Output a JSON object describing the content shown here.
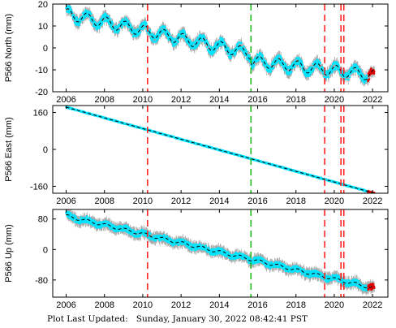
{
  "footer": {
    "label": "Plot Last Updated:",
    "timestamp": "Sunday, January 30, 2022 08:42:41 PST"
  },
  "colors": {
    "data_fill": "#00e5ff",
    "error_bars": "#a9a9a9",
    "model_line": "#000000",
    "recent_data": "#e00000",
    "red_event_line": "#ff2222",
    "green_event_line": "#22bb22"
  },
  "chart_data": [
    {
      "type": "scatter",
      "station": "P566",
      "component": "North",
      "ylabel": "P566 North (mm)",
      "xlim": [
        2005.3,
        2022.8
      ],
      "ylim": [
        -20,
        20
      ],
      "x_ticks": [
        2006,
        2008,
        2010,
        2012,
        2014,
        2016,
        2018,
        2020,
        2022
      ],
      "y_ticks": [
        -20,
        -10,
        0,
        10,
        20
      ],
      "trend": {
        "x": [
          2006.0,
          2015.6,
          2015.7,
          2022.1
        ],
        "y": [
          15.5,
          -2.5,
          -6.0,
          -12.5
        ],
        "seasonal_amplitude_mm": 2.5
      },
      "vertical_lines": [
        {
          "x": 2010.25,
          "color": "red"
        },
        {
          "x": 2015.65,
          "color": "green"
        },
        {
          "x": 2019.5,
          "color": "red"
        },
        {
          "x": 2020.35,
          "color": "red"
        },
        {
          "x": 2020.5,
          "color": "red"
        }
      ]
    },
    {
      "type": "scatter",
      "station": "P566",
      "component": "East",
      "ylabel": "P566 East (mm)",
      "xlim": [
        2005.3,
        2022.8
      ],
      "ylim": [
        -190,
        190
      ],
      "x_ticks": [
        2006,
        2008,
        2010,
        2012,
        2014,
        2016,
        2018,
        2020,
        2022
      ],
      "y_ticks": [
        -160,
        0,
        160
      ],
      "trend": {
        "x": [
          2006.0,
          2022.1
        ],
        "y": [
          183,
          -190
        ],
        "seasonal_amplitude_mm": 0
      },
      "vertical_lines": [
        {
          "x": 2010.25,
          "color": "red"
        },
        {
          "x": 2015.65,
          "color": "green"
        },
        {
          "x": 2019.5,
          "color": "red"
        },
        {
          "x": 2020.35,
          "color": "red"
        },
        {
          "x": 2020.5,
          "color": "red"
        }
      ]
    },
    {
      "type": "scatter",
      "station": "P566",
      "component": "Up",
      "ylabel": "P566 Up (mm)",
      "xlim": [
        2005.3,
        2022.8
      ],
      "ylim": [
        -125,
        105
      ],
      "x_ticks": [
        2006,
        2008,
        2010,
        2012,
        2014,
        2016,
        2018,
        2020,
        2022
      ],
      "y_ticks": [
        -80,
        0,
        80
      ],
      "trend": {
        "x": [
          2006.0,
          2022.1
        ],
        "y": [
          88,
          -102
        ],
        "seasonal_amplitude_mm": 4
      },
      "vertical_lines": [
        {
          "x": 2010.25,
          "color": "red"
        },
        {
          "x": 2015.65,
          "color": "green"
        },
        {
          "x": 2019.5,
          "color": "red"
        },
        {
          "x": 2020.35,
          "color": "red"
        },
        {
          "x": 2020.5,
          "color": "red"
        }
      ]
    }
  ]
}
